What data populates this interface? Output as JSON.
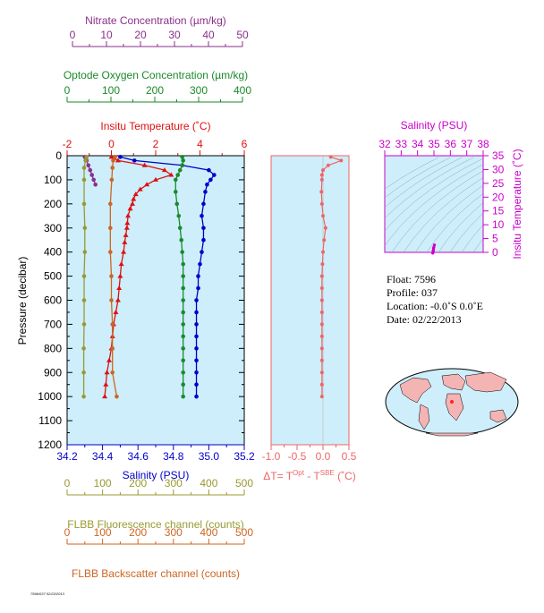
{
  "colors": {
    "nitrate": "#8b2f8b",
    "oxygen": "#1a8a2a",
    "temperature": "#dd1111",
    "salinity": "#0000cc",
    "fluorescence": "#999933",
    "backscatter": "#cc6622",
    "delta_t": "#ee6666",
    "ts_salinity": "#cc00cc",
    "panel_bg": "#cdeefa"
  },
  "axes": {
    "nitrate": {
      "label": "Nitrate Concentration (µm/kg)",
      "min": 0,
      "max": 50,
      "ticks": [
        "0",
        "10",
        "20",
        "30",
        "40",
        "50"
      ]
    },
    "oxygen": {
      "label": "Optode Oxygen Concentration (µm/kg)",
      "min": 0,
      "max": 400,
      "ticks": [
        "0",
        "100",
        "200",
        "300",
        "400"
      ]
    },
    "temperature": {
      "label": "Insitu Temperature (˚C)",
      "min": -2,
      "max": 6,
      "ticks": [
        "-2",
        "0",
        "2",
        "4",
        "6"
      ]
    },
    "pressure": {
      "label": "Pressure (decibar)",
      "min": 0,
      "max": 1200,
      "ticks": [
        "0",
        "100",
        "200",
        "300",
        "400",
        "500",
        "600",
        "700",
        "800",
        "900",
        "1000",
        "1100",
        "1200"
      ]
    },
    "salinity": {
      "label": "Salinity (PSU)",
      "min": 34.2,
      "max": 35.2,
      "ticks": [
        "34.2",
        "34.4",
        "34.6",
        "34.8",
        "35.0",
        "35.2"
      ]
    },
    "fluorescence": {
      "label": "FLBB Fluorescence channel (counts)",
      "min": 0,
      "max": 500,
      "ticks": [
        "0",
        "100",
        "200",
        "300",
        "400",
        "500"
      ]
    },
    "backscatter": {
      "label": "FLBB Backscatter channel (counts)",
      "min": 0,
      "max": 500,
      "ticks": [
        "0",
        "100",
        "200",
        "300",
        "400",
        "500"
      ]
    },
    "delta_t": {
      "label_parts": [
        "ΔT= T",
        "Opt",
        " - T",
        "SBE",
        " (˚C)"
      ],
      "min": -1.0,
      "max": 0.5,
      "ticks": [
        "-1.0",
        "-0.5",
        "0.0",
        "0.5"
      ]
    },
    "ts_salinity": {
      "label": "Salinity (PSU)",
      "min": 32,
      "max": 38,
      "ticks": [
        "32",
        "33",
        "34",
        "35",
        "36",
        "37",
        "38"
      ]
    },
    "ts_temperature": {
      "label": "Insitu Temperature (˚C)",
      "min": 0,
      "max": 35,
      "ticks": [
        "0",
        "5",
        "10",
        "15",
        "20",
        "25",
        "30",
        "35"
      ]
    }
  },
  "info": {
    "float": "Float:  7596",
    "profile": "Profile:  037",
    "location": "Location:  -0.0˚S   0.0˚E",
    "date": "Date:  02/22/2013"
  },
  "footer_text": "7596/037 02/22/2013",
  "chart_data": [
    {
      "type": "line",
      "title": "",
      "ylabel": "Pressure (decibar)",
      "ylim": [
        1200,
        0
      ],
      "grid": false,
      "series": [
        {
          "name": "Insitu Temperature (˚C)",
          "color_key": "temperature",
          "axis": "temperature",
          "pressure": [
            5,
            20,
            40,
            60,
            80,
            100,
            120,
            140,
            160,
            180,
            200,
            220,
            250,
            280,
            300,
            330,
            360,
            400,
            450,
            500,
            550,
            600,
            650,
            700,
            750,
            800,
            850,
            900,
            950,
            1000
          ],
          "values": [
            0.0,
            0.3,
            1.5,
            2.4,
            2.7,
            2.0,
            1.6,
            1.3,
            1.1,
            1.0,
            0.95,
            0.85,
            0.75,
            0.72,
            0.7,
            0.65,
            0.6,
            0.55,
            0.45,
            0.4,
            0.35,
            0.3,
            0.2,
            0.1,
            0.05,
            0.0,
            -0.1,
            -0.2,
            -0.25,
            -0.3
          ]
        },
        {
          "name": "Salinity (PSU)",
          "color_key": "salinity",
          "axis": "salinity",
          "pressure": [
            5,
            20,
            40,
            60,
            80,
            100,
            120,
            150,
            200,
            250,
            300,
            350,
            400,
            450,
            500,
            550,
            600,
            650,
            700,
            750,
            800,
            850,
            900,
            950,
            1000
          ],
          "values": [
            34.5,
            34.58,
            34.85,
            35.0,
            35.03,
            35.01,
            34.99,
            34.98,
            34.97,
            34.96,
            34.97,
            34.97,
            34.96,
            34.95,
            34.94,
            34.94,
            34.93,
            34.93,
            34.93,
            34.93,
            34.93,
            34.93,
            34.93,
            34.93,
            34.93
          ]
        },
        {
          "name": "Optode Oxygen Concentration (µm/kg)",
          "color_key": "oxygen",
          "axis": "oxygen",
          "pressure": [
            5,
            20,
            40,
            60,
            80,
            100,
            150,
            200,
            250,
            300,
            350,
            400,
            450,
            500,
            550,
            600,
            650,
            700,
            750,
            800,
            850,
            900,
            950,
            1000
          ],
          "values": [
            260,
            262,
            260,
            255,
            250,
            245,
            245,
            248,
            252,
            255,
            258,
            260,
            262,
            262,
            262,
            262,
            262,
            262,
            262,
            262,
            262,
            262,
            262,
            262
          ]
        },
        {
          "name": "Nitrate Concentration (µm/kg)",
          "color_key": "nitrate",
          "axis": "nitrate",
          "pressure": [
            5,
            20,
            40,
            60,
            80,
            100,
            120
          ],
          "values": [
            5,
            5.5,
            6,
            6.5,
            7,
            7.5,
            8
          ]
        },
        {
          "name": "FLBB Fluorescence channel (counts)",
          "color_key": "fluorescence",
          "axis": "fluorescence",
          "pressure": [
            5,
            20,
            50,
            100,
            200,
            300,
            400,
            500,
            600,
            700,
            800,
            900,
            1000
          ],
          "values": [
            55,
            52,
            48,
            48,
            48,
            50,
            50,
            48,
            48,
            48,
            47,
            47,
            47
          ]
        },
        {
          "name": "FLBB Backscatter channel (counts)",
          "color_key": "backscatter",
          "axis": "backscatter",
          "pressure": [
            5,
            20,
            50,
            100,
            200,
            300,
            400,
            500,
            600,
            700,
            800,
            900,
            1000
          ],
          "values": [
            135,
            130,
            128,
            126,
            122,
            122,
            122,
            125,
            125,
            128,
            128,
            128,
            140
          ]
        }
      ]
    },
    {
      "type": "line",
      "xlabel": "ΔT= T(Opt) - T(SBE) (˚C)",
      "xlim": [
        -1.0,
        0.5
      ],
      "ylim": [
        1200,
        0
      ],
      "series": [
        {
          "name": "",
          "color_key": "delta_t",
          "pressure": [
            5,
            20,
            40,
            60,
            80,
            100,
            150,
            200,
            250,
            300,
            350,
            400,
            450,
            500,
            550,
            600,
            650,
            700,
            750,
            800,
            850,
            900,
            950,
            1000
          ],
          "values": [
            0.15,
            0.35,
            0.1,
            0.0,
            -0.02,
            -0.02,
            -0.03,
            -0.02,
            0.0,
            0.05,
            0.02,
            0.0,
            -0.01,
            -0.02,
            -0.02,
            -0.02,
            -0.02,
            -0.02,
            -0.02,
            -0.02,
            -0.02,
            -0.02,
            -0.02,
            -0.02
          ]
        }
      ]
    },
    {
      "type": "scatter",
      "xlabel": "Salinity (PSU)",
      "ylabel": "Insitu Temperature (˚C)",
      "xlim": [
        32,
        38
      ],
      "ylim": [
        0,
        35
      ],
      "series": [
        {
          "name": "",
          "color_key": "ts_salinity",
          "x": [
            34.93,
            34.94,
            34.95,
            34.96,
            34.97,
            34.98,
            35.0,
            35.03,
            34.97,
            34.93
          ],
          "y": [
            -0.3,
            0.1,
            0.4,
            0.7,
            1.0,
            1.3,
            2.0,
            2.7,
            1.5,
            -0.2
          ]
        }
      ]
    }
  ]
}
